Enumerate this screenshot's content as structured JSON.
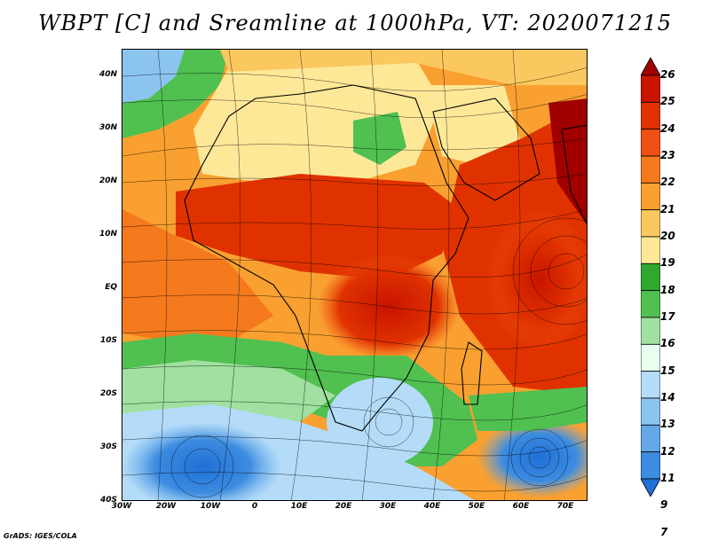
{
  "title": "WBPT [C] and Sreamline at 1000hPa, VT: 2020071215",
  "credit": "GrADS: IGES/COLA",
  "map": {
    "lon_range": [
      -30,
      75
    ],
    "lat_range": [
      -40,
      45
    ],
    "lat_labels": [
      {
        "lat": 40,
        "label": "40N"
      },
      {
        "lat": 30,
        "label": "30N"
      },
      {
        "lat": 20,
        "label": "20N"
      },
      {
        "lat": 10,
        "label": "10N"
      },
      {
        "lat": 0,
        "label": "EQ"
      },
      {
        "lat": -10,
        "label": "10S"
      },
      {
        "lat": -20,
        "label": "20S"
      },
      {
        "lat": -30,
        "label": "30S"
      },
      {
        "lat": -40,
        "label": "40S"
      }
    ],
    "lon_labels": [
      {
        "lon": -30,
        "label": "30W"
      },
      {
        "lon": -20,
        "label": "20W"
      },
      {
        "lon": -10,
        "label": "10W"
      },
      {
        "lon": 0,
        "label": "0"
      },
      {
        "lon": 10,
        "label": "10E"
      },
      {
        "lon": 20,
        "label": "20E"
      },
      {
        "lon": 30,
        "label": "30E"
      },
      {
        "lon": 40,
        "label": "40E"
      },
      {
        "lon": 50,
        "label": "50E"
      },
      {
        "lon": 60,
        "label": "60E"
      },
      {
        "lon": 70,
        "label": "70E"
      }
    ]
  },
  "colorbar": {
    "levels": [
      "26",
      "25",
      "24",
      "23",
      "22",
      "21",
      "20",
      "19",
      "18",
      "17",
      "16",
      "15",
      "14",
      "13",
      "12",
      "11",
      "9",
      "7"
    ],
    "colors": [
      "#a00000",
      "#c81400",
      "#e03200",
      "#f05014",
      "#f57a1e",
      "#f9a030",
      "#fbc860",
      "#fde898",
      "#30a830",
      "#50c050",
      "#a0e0a0",
      "#e8fff0",
      "#b4dcf8",
      "#8cc4f0",
      "#64a8e8",
      "#3c8ce0",
      "#2070d8"
    ]
  }
}
